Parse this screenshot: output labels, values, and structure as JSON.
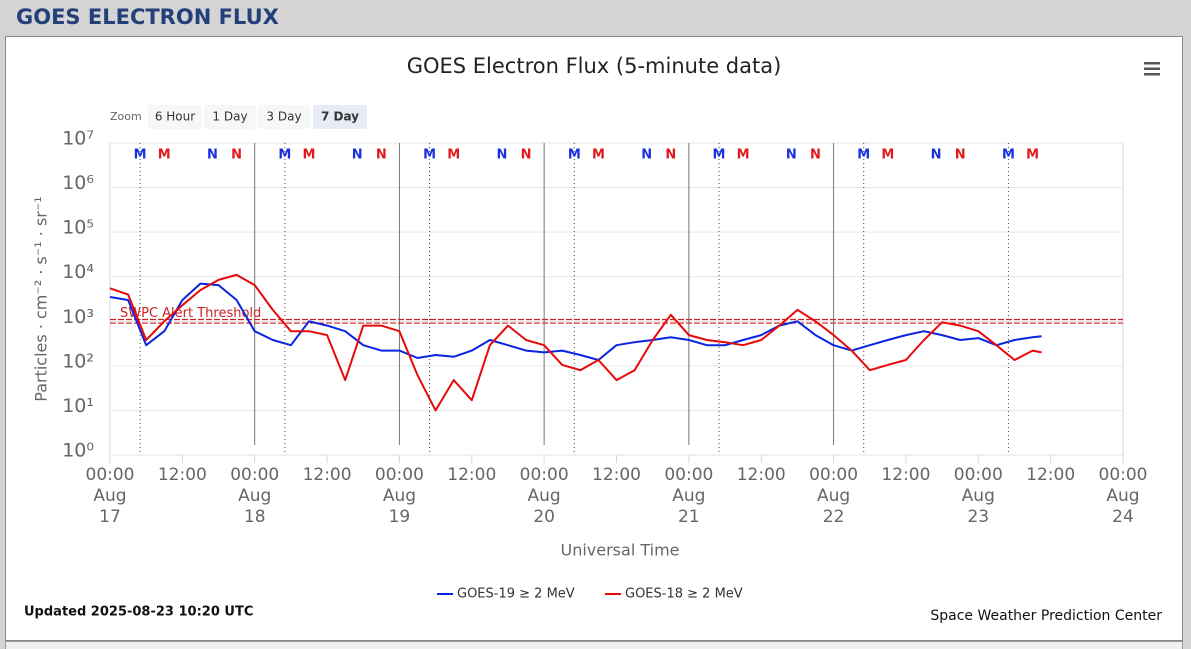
{
  "header": {
    "title": "GOES ELECTRON FLUX"
  },
  "zoom": {
    "label": "Zoom",
    "buttons": [
      "6 Hour",
      "1 Day",
      "3 Day",
      "7 Day"
    ],
    "active": 3
  },
  "chart_data": {
    "type": "line",
    "title": "GOES Electron Flux (5-minute data)",
    "x_label": "Universal Time",
    "y_label": "Particles · cm⁻² · s⁻¹ · sr⁻¹",
    "log_y": true,
    "grid": true,
    "xlim": [
      0,
      168
    ],
    "xticks": [
      {
        "value": 0,
        "label": "00:00 Aug 17"
      },
      {
        "value": 12,
        "label": "12:00"
      },
      {
        "value": 24,
        "label": "00:00 Aug 18"
      },
      {
        "value": 36,
        "label": "12:00"
      },
      {
        "value": 48,
        "label": "00:00 Aug 19"
      },
      {
        "value": 60,
        "label": "12:00"
      },
      {
        "value": 72,
        "label": "00:00 Aug 20"
      },
      {
        "value": 84,
        "label": "12:00"
      },
      {
        "value": 96,
        "label": "00:00 Aug 21"
      },
      {
        "value": 108,
        "label": "12:00"
      },
      {
        "value": 120,
        "label": "00:00 Aug 22"
      },
      {
        "value": 132,
        "label": "12:00"
      },
      {
        "value": 144,
        "label": "00:00 Aug 23"
      },
      {
        "value": 156,
        "label": "12:00"
      },
      {
        "value": 168,
        "label": "00:00 Aug 24"
      }
    ],
    "ylim": [
      1,
      10000000
    ],
    "yticks": [
      {
        "value": 1,
        "label": "10⁰"
      },
      {
        "value": 10,
        "label": "10¹"
      },
      {
        "value": 100,
        "label": "10²"
      },
      {
        "value": 1000,
        "label": "10³"
      },
      {
        "value": 10000,
        "label": "10⁴"
      },
      {
        "value": 100000,
        "label": "10⁵"
      },
      {
        "value": 1000000,
        "label": "10⁶"
      },
      {
        "value": 10000000,
        "label": "10⁷"
      }
    ],
    "x": [
      0,
      3,
      6,
      9,
      12,
      15,
      18,
      21,
      24,
      27,
      30,
      33,
      36,
      39,
      42,
      45,
      48,
      51,
      54,
      57,
      60,
      63,
      66,
      69,
      72,
      75,
      78,
      81,
      84,
      87,
      90,
      93,
      96,
      99,
      102,
      105,
      108,
      111,
      114,
      117,
      120,
      123,
      126,
      129,
      132,
      135,
      138,
      141,
      144,
      147,
      150,
      153,
      154.5
    ],
    "series": [
      {
        "name": "GOES-19 ≥ 2 MeV",
        "color": "#0a24e0",
        "values": [
          3500,
          3000,
          290,
          600,
          3000,
          7000,
          6500,
          3000,
          600,
          380,
          290,
          1000,
          800,
          600,
          290,
          220,
          220,
          150,
          175,
          160,
          220,
          380,
          290,
          220,
          200,
          220,
          175,
          135,
          290,
          340,
          380,
          440,
          380,
          290,
          290,
          380,
          490,
          800,
          1000,
          490,
          290,
          220,
          290,
          380,
          490,
          600,
          490,
          380,
          420,
          290,
          380,
          440,
          460
        ]
      },
      {
        "name": "GOES-18 ≥ 2 MeV",
        "color": "#e80a0a",
        "values": [
          5500,
          4000,
          380,
          1000,
          2300,
          5000,
          8500,
          11000,
          6500,
          1800,
          600,
          600,
          490,
          48,
          800,
          800,
          600,
          62,
          10,
          48,
          17,
          290,
          800,
          380,
          290,
          105,
          80,
          135,
          48,
          80,
          380,
          1400,
          490,
          380,
          340,
          290,
          380,
          800,
          1800,
          1000,
          490,
          220,
          80,
          105,
          135,
          380,
          950,
          800,
          600,
          290,
          135,
          220,
          200
        ]
      }
    ],
    "threshold": {
      "value": 1000,
      "label": "SWPC Alert Threshold",
      "color": "#cc2222"
    },
    "day_lines": [
      24,
      48,
      72,
      96,
      120
    ],
    "markers": [
      {
        "label": "M",
        "color": "#1a2fe0",
        "dotted_line": true,
        "x": [
          5,
          29,
          53,
          77,
          101,
          125,
          149
        ]
      },
      {
        "label": "M",
        "color": "#e01a1a",
        "dotted_line": false,
        "x": [
          9,
          33,
          57,
          81,
          105,
          129,
          153
        ]
      },
      {
        "label": "N",
        "color": "#1a2fe0",
        "dotted_line": false,
        "x": [
          17,
          41,
          65,
          89,
          113,
          137
        ]
      },
      {
        "label": "N",
        "color": "#e01a1a",
        "dotted_line": false,
        "x": [
          21,
          45,
          69,
          93,
          117,
          141
        ]
      }
    ]
  },
  "footer": {
    "updated": "Updated 2025-08-23 10:20 UTC",
    "credit": "Space Weather Prediction Center"
  }
}
